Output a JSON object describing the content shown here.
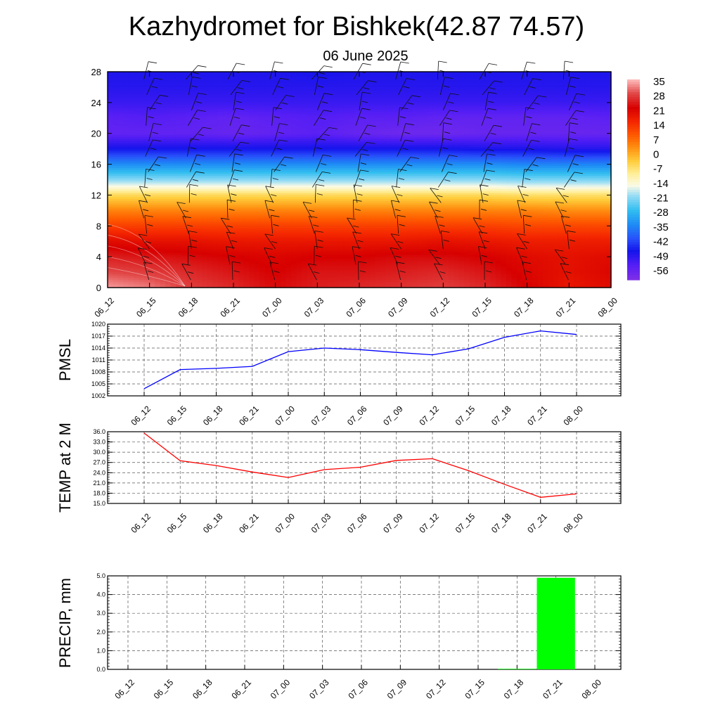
{
  "title": "Kazhydromet for Bishkek(42.87 74.57)",
  "subtitle": "06 June 2025",
  "chart_data": [
    {
      "type": "heatmap",
      "description_role": "temperature cross-section with wind barbs",
      "x_ticks": [
        "06_12",
        "06_15",
        "06_18",
        "06_21",
        "07_00",
        "07_03",
        "07_06",
        "07_09",
        "07_12",
        "07_15",
        "07_18",
        "07_21",
        "08_00"
      ],
      "y_ticks": [
        "0",
        "4",
        "8",
        "12",
        "16",
        "20",
        "24",
        "28"
      ],
      "ylim": [
        0,
        28
      ],
      "colorbar_labels": [
        "35",
        "28",
        "21",
        "14",
        "7",
        "0",
        "-7",
        "-14",
        "-21",
        "-28",
        "-35",
        "-42",
        "-49",
        "-56"
      ],
      "colorbar_range": [
        -60,
        38
      ],
      "temperature_by_level": [
        {
          "level": 0,
          "values": [
            36,
            34,
            30,
            28,
            25,
            27,
            28,
            29,
            30,
            28,
            24,
            20,
            22
          ]
        },
        {
          "level": 2,
          "values": [
            31,
            30,
            28,
            26,
            24,
            26,
            26,
            27,
            28,
            26,
            23,
            21,
            23
          ]
        },
        {
          "level": 4,
          "values": [
            27,
            26,
            25,
            24,
            23,
            24,
            24,
            25,
            25,
            24,
            22,
            21,
            22
          ]
        },
        {
          "level": 6,
          "values": [
            22,
            21,
            21,
            20,
            20,
            20,
            20,
            20,
            21,
            20,
            19,
            19,
            19
          ]
        },
        {
          "level": 8,
          "values": [
            14,
            14,
            14,
            14,
            14,
            14,
            14,
            14,
            14,
            14,
            13,
            13,
            13
          ]
        },
        {
          "level": 10,
          "values": [
            6,
            6,
            6,
            6,
            6,
            6,
            6,
            6,
            6,
            6,
            6,
            5,
            5
          ]
        },
        {
          "level": 12,
          "values": [
            -4,
            -4,
            -4,
            -4,
            -4,
            -4,
            -4,
            -4,
            -4,
            -4,
            -5,
            -5,
            -5
          ]
        },
        {
          "level": 13,
          "values": [
            -13,
            -13,
            -13,
            -13,
            -13,
            -13,
            -13,
            -13,
            -13,
            -13,
            -14,
            -14,
            -14
          ]
        },
        {
          "level": 14,
          "values": [
            -20,
            -20,
            -20,
            -20,
            -20,
            -20,
            -20,
            -20,
            -20,
            -20,
            -21,
            -21,
            -21
          ]
        },
        {
          "level": 16,
          "values": [
            -33,
            -33,
            -33,
            -33,
            -33,
            -33,
            -33,
            -33,
            -33,
            -33,
            -34,
            -34,
            -34
          ]
        },
        {
          "level": 18,
          "values": [
            -46,
            -46,
            -46,
            -46,
            -46,
            -46,
            -46,
            -46,
            -46,
            -47,
            -47,
            -48,
            -48
          ]
        },
        {
          "level": 20,
          "values": [
            -55,
            -55,
            -55,
            -56,
            -55,
            -54,
            -56,
            -57,
            -57,
            -56,
            -56,
            -56,
            -56
          ]
        },
        {
          "level": 22,
          "values": [
            -54,
            -53,
            -54,
            -55,
            -54,
            -53,
            -54,
            -54,
            -55,
            -55,
            -55,
            -55,
            -54
          ]
        },
        {
          "level": 24,
          "values": [
            -50,
            -50,
            -50,
            -50,
            -50,
            -50,
            -50,
            -50,
            -50,
            -50,
            -50,
            -50,
            -50
          ]
        },
        {
          "level": 26,
          "values": [
            -48,
            -48,
            -48,
            -48,
            -48,
            -48,
            -48,
            -48,
            -48,
            -48,
            -48,
            -48,
            -48
          ]
        },
        {
          "level": 28,
          "values": [
            -47,
            -47,
            -47,
            -47,
            -47,
            -46,
            -47,
            -47,
            -47,
            -47,
            -47,
            -47,
            -47
          ]
        }
      ]
    },
    {
      "type": "line",
      "ylabel": "PMSL",
      "x": [
        "06_12",
        "06_15",
        "06_18",
        "06_21",
        "07_00",
        "07_03",
        "07_06",
        "07_09",
        "07_12",
        "07_15",
        "07_18",
        "07_21",
        "08_00"
      ],
      "y_ticks": [
        "1020",
        "1017",
        "1014",
        "1011",
        "1008",
        "1005",
        "1002"
      ],
      "ylim": [
        1002,
        1020
      ],
      "color": "#0000ff",
      "values": [
        1003.8,
        1008.6,
        1008.9,
        1009.4,
        1013.1,
        1014.0,
        1013.6,
        1012.9,
        1012.3,
        1013.8,
        1016.7,
        1018.3,
        1017.4
      ]
    },
    {
      "type": "line",
      "ylabel": "TEMP at 2 M",
      "x": [
        "06_12",
        "06_15",
        "06_18",
        "06_21",
        "07_00",
        "07_03",
        "07_06",
        "07_09",
        "07_12",
        "07_15",
        "07_18",
        "07_21",
        "08_00"
      ],
      "y_ticks": [
        "36.0",
        "33.0",
        "30.0",
        "27.0",
        "24.0",
        "21.0",
        "18.0",
        "15.0"
      ],
      "ylim": [
        15,
        36
      ],
      "color": "#ff0000",
      "values": [
        35.6,
        27.5,
        26.1,
        24.2,
        22.6,
        24.9,
        25.6,
        27.6,
        28.1,
        24.6,
        20.6,
        16.8,
        17.8
      ]
    },
    {
      "type": "bar",
      "ylabel": "PRECIP, mm",
      "categories": [
        "06_12",
        "06_15",
        "06_18",
        "06_21",
        "07_00",
        "07_03",
        "07_06",
        "07_09",
        "07_12",
        "07_15",
        "07_18",
        "07_21",
        "08_00"
      ],
      "y_ticks": [
        "5.0",
        "4.0",
        "3.0",
        "2.0",
        "1.0",
        "0.0"
      ],
      "ylim": [
        0,
        5
      ],
      "color": "#00ff00",
      "values": [
        0,
        0,
        0,
        0,
        0,
        0,
        0,
        0,
        0,
        0,
        0.03,
        4.9,
        0
      ]
    }
  ]
}
